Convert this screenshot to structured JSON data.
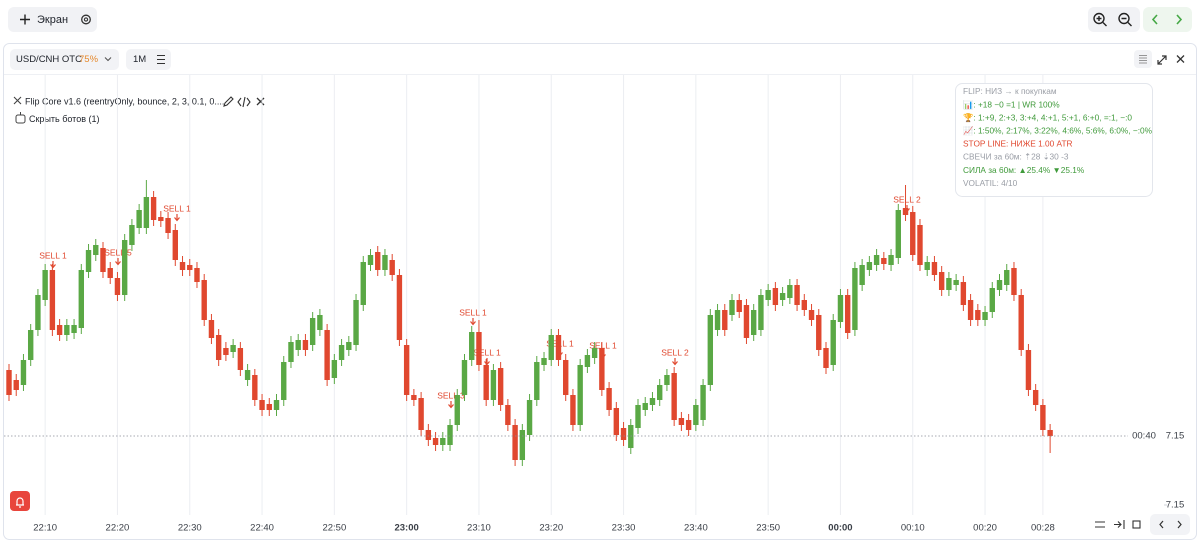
{
  "toolbar": {
    "screen_button": "Экран"
  },
  "panel": {
    "symbol": "USD/CNH OTC",
    "payout": "75%",
    "timeframe": "1M"
  },
  "bot": {
    "name": "Flip Core v1.6 (reentryOnly, bounce, 2, 3, 0.1, 0....",
    "hide": "Скрыть ботов (1)"
  },
  "info_box": {
    "lines": [
      {
        "text": "FLIP: НИЗ → к покупкам",
        "color": "#9a9ea6"
      },
      {
        "text": "📊: +18 −0 =1 | WR 100%",
        "color": "#3f9a3a"
      },
      {
        "text": "🏆: 1:+9, 2:+3, 3:+4, 4:+1, 5:+1, 6:+0, =:1, −:0",
        "color": "#3f9a3a"
      },
      {
        "text": "📈: 1:50%, 2:17%, 3:22%, 4:6%, 5:6%, 6:0%, −:0%",
        "color": "#3f9a3a"
      },
      {
        "text": "STOP LINE: НИЖЕ 1.00 ATR",
        "color": "#e0482f"
      },
      {
        "text": "СВЕЧИ за 60м: ⇡28 ⇣30 -3",
        "color": "#9a9ea6"
      },
      {
        "text": "СИЛА за 60м: ▲25.4% ▼25.1%",
        "color": "#3f9a3a"
      },
      {
        "text": "VOLATIL: 4/10",
        "color": "#9a9ea6"
      }
    ]
  },
  "chart_data": {
    "type": "candlestick",
    "up_color": "#5aa845",
    "down_color": "#e0482f",
    "ylim": [
      7.1499,
      7.1543
    ],
    "yticks": [
      7.15
    ],
    "current_price": {
      "value": 7.15069,
      "label": "7.15"
    },
    "timer": "00:40",
    "annotations": [
      "SELL 1",
      "SELL 5",
      "SELL 1",
      "SELL 3",
      "SELL 1",
      "SELL 1",
      "SELL 1",
      "SELL 1",
      "SELL 2",
      "SELL 2"
    ],
    "categories": [
      null,
      null,
      null,
      null,
      null,
      "22:10",
      null,
      null,
      null,
      null,
      null,
      null,
      null,
      null,
      null,
      "22:20",
      null,
      null,
      null,
      null,
      null,
      null,
      null,
      null,
      null,
      "22:30",
      null,
      null,
      null,
      null,
      null,
      null,
      null,
      null,
      null,
      "22:40",
      null,
      null,
      null,
      null,
      null,
      null,
      null,
      null,
      null,
      "22:50",
      null,
      null,
      null,
      null,
      null,
      null,
      null,
      null,
      null,
      "23:00",
      null,
      null,
      null,
      null,
      null,
      null,
      null,
      null,
      null,
      "23:10",
      null,
      null,
      null,
      null,
      null,
      null,
      null,
      null,
      null,
      "23:20",
      null,
      null,
      null,
      null,
      null,
      null,
      null,
      null,
      null,
      "23:30",
      null,
      null,
      null,
      null,
      null,
      null,
      null,
      null,
      null,
      "23:40",
      null,
      null,
      null,
      null,
      null,
      null,
      null,
      null,
      null,
      "23:50",
      null,
      null,
      null,
      null,
      null,
      null,
      null,
      null,
      null,
      "00:00",
      null,
      null,
      null,
      null,
      null,
      null,
      null,
      null,
      null,
      "00:10",
      null,
      null,
      null,
      null,
      null,
      null,
      null,
      null,
      null,
      "00:20",
      null,
      null,
      null,
      null,
      null,
      null,
      null,
      "00:28",
      null
    ],
    "open": [
      7.15135,
      7.15125,
      7.1512,
      7.15145,
      7.15175,
      7.15205,
      7.15235,
      7.1518,
      7.1517,
      7.15172,
      7.15177,
      7.15233,
      7.1525,
      7.15257,
      7.15237,
      7.15227,
      7.1521,
      7.1526,
      7.15277,
      7.15277,
      7.15308,
      7.15288,
      7.15287,
      7.15275,
      7.15243,
      7.1524,
      7.15237,
      7.15225,
      7.15185,
      7.1517,
      7.15157,
      7.15153,
      7.15157,
      7.15125,
      7.1513,
      7.15105,
      7.15101,
      7.15095,
      7.15105,
      7.15143,
      7.15155,
      7.15165,
      7.1516,
      7.15175,
      7.15175,
      7.15127,
      7.15145,
      7.15155,
      7.1516,
      7.152,
      7.1524,
      7.15253,
      7.15235,
      7.15245,
      7.1523,
      7.1516,
      7.1511,
      7.15107,
      7.15075,
      7.15067,
      7.1506,
      7.1506,
      7.1508,
      7.1511,
      7.15145,
      7.15173,
      7.1514,
      7.15105,
      7.15137,
      7.151,
      7.1508,
      7.15045,
      7.1507,
      7.15105,
      7.1514,
      7.15145,
      7.1517,
      7.15145,
      7.1511,
      7.1508,
      7.15138,
      7.15147,
      7.15157,
      7.15117,
      7.15097,
      7.15077,
      7.15057,
      7.15077,
      7.15095,
      7.151,
      7.15105,
      7.1512,
      7.15132,
      7.15087,
      7.15085,
      7.1508,
      7.15085,
      7.1512,
      7.15175,
      7.15195,
      7.1519,
      7.15205,
      7.152,
      7.1517,
      7.15175,
      7.15205,
      7.15217,
      7.15205,
      7.15207,
      7.1522,
      7.15205,
      7.15195,
      7.1519,
      7.15157,
      7.1514,
      7.15183,
      7.1521,
      7.15175,
      7.1522,
      7.15235,
      7.1524,
      7.15247,
      7.1524,
      7.15247,
      7.15297,
      7.15293,
      7.1528,
      7.15235,
      7.15243,
      7.15233,
      7.15215,
      7.1522,
      7.15223,
      7.15205,
      7.15195,
      7.15185,
      7.15193,
      7.15215,
      7.1522,
      7.15237,
      7.1521,
      7.15155,
      7.15115,
      7.151,
      7.15075
    ],
    "high": [
      7.15141,
      7.15131,
      7.15151,
      7.15181,
      7.15216,
      7.15241,
      7.15241,
      7.15186,
      7.15186,
      7.15186,
      7.15241,
      7.15261,
      7.15266,
      7.15263,
      7.15243,
      7.15233,
      7.15271,
      7.15286,
      7.15301,
      7.15325,
      7.15314,
      7.15294,
      7.15293,
      7.15281,
      7.15249,
      7.15246,
      7.15243,
      7.15231,
      7.15191,
      7.15176,
      7.15163,
      7.15166,
      7.15163,
      7.15141,
      7.15136,
      7.15111,
      7.15107,
      7.15111,
      7.15149,
      7.15169,
      7.15171,
      7.15171,
      7.15193,
      7.15196,
      7.15181,
      7.15151,
      7.15166,
      7.15169,
      7.15211,
      7.15249,
      7.15256,
      7.15259,
      7.15256,
      7.15251,
      7.15236,
      7.15166,
      7.15116,
      7.15113,
      7.15081,
      7.15073,
      7.15073,
      7.15086,
      7.15116,
      7.15151,
      7.15179,
      7.15185,
      7.15146,
      7.15141,
      7.15143,
      7.15106,
      7.15086,
      7.15081,
      7.15111,
      7.15149,
      7.15153,
      7.15176,
      7.15176,
      7.15151,
      7.15116,
      7.15146,
      7.15156,
      7.15163,
      7.15163,
      7.15123,
      7.15103,
      7.15083,
      7.15086,
      7.15106,
      7.15108,
      7.15113,
      7.15126,
      7.15136,
      7.15138,
      7.15093,
      7.15091,
      7.15106,
      7.15126,
      7.15196,
      7.15201,
      7.15201,
      7.15211,
      7.15211,
      7.15206,
      7.15201,
      7.15216,
      7.15221,
      7.15223,
      7.15218,
      7.15226,
      7.15226,
      7.15211,
      7.15201,
      7.15196,
      7.15163,
      7.15191,
      7.15216,
      7.15216,
      7.15243,
      7.15246,
      7.15249,
      7.15256,
      7.15253,
      7.15256,
      7.15301,
      7.1532,
      7.15299,
      7.15286,
      7.15249,
      7.15249,
      7.15239,
      7.15233,
      7.15231,
      7.15229,
      7.15211,
      7.15201,
      7.15199,
      7.15223,
      7.15231,
      7.15241,
      7.15243,
      7.15216,
      7.15161,
      7.15121,
      7.15106,
      7.15081
    ],
    "low": [
      7.15104,
      7.15109,
      7.15114,
      7.15139,
      7.15169,
      7.15199,
      7.15169,
      7.15164,
      7.15164,
      7.15166,
      7.15171,
      7.15227,
      7.15244,
      7.15227,
      7.15221,
      7.15204,
      7.15204,
      7.15254,
      7.15271,
      7.15271,
      7.15279,
      7.15278,
      7.15266,
      7.15239,
      7.15229,
      7.15229,
      7.15217,
      7.15179,
      7.15161,
      7.15139,
      7.15144,
      7.15147,
      7.15129,
      7.15119,
      7.15099,
      7.15089,
      7.15089,
      7.15089,
      7.15099,
      7.15137,
      7.15149,
      7.15149,
      7.15154,
      7.15169,
      7.15119,
      7.15121,
      7.15139,
      7.15149,
      7.15154,
      7.15194,
      7.15234,
      7.15229,
      7.15229,
      7.15224,
      7.15159,
      7.15104,
      7.15099,
      7.15069,
      7.15059,
      7.15054,
      7.15054,
      7.15054,
      7.15074,
      7.15104,
      7.15139,
      7.15134,
      7.15099,
      7.15099,
      7.15094,
      7.15074,
      7.15039,
      7.15039,
      7.15064,
      7.15099,
      7.15134,
      7.15139,
      7.15139,
      7.15104,
      7.15074,
      7.15074,
      7.15132,
      7.15141,
      7.15109,
      7.15089,
      7.15064,
      7.15059,
      7.15051,
      7.15071,
      7.15089,
      7.15094,
      7.15099,
      7.15114,
      7.15079,
      7.15074,
      7.15069,
      7.15074,
      7.15079,
      7.15114,
      7.15169,
      7.15169,
      7.15184,
      7.15187,
      7.15161,
      7.15164,
      7.15169,
      7.15199,
      7.15194,
      7.15199,
      7.15201,
      7.15194,
      7.15189,
      7.15179,
      7.15149,
      7.15131,
      7.15134,
      7.15177,
      7.15166,
      7.15169,
      7.15214,
      7.15229,
      7.15234,
      7.15235,
      7.15234,
      7.15241,
      7.15284,
      7.15244,
      7.15234,
      7.15229,
      7.15224,
      7.15209,
      7.15209,
      7.15214,
      7.15194,
      7.15179,
      7.15179,
      7.15179,
      7.15187,
      7.15209,
      7.15214,
      7.15204,
      7.15149,
      7.15109,
      7.15094,
      7.15069,
      7.15052
    ],
    "close": [
      7.1511,
      7.15115,
      7.15145,
      7.15175,
      7.1521,
      7.15235,
      7.15175,
      7.1517,
      7.1518,
      7.1518,
      7.15235,
      7.15255,
      7.1526,
      7.15233,
      7.15227,
      7.1521,
      7.15265,
      7.1528,
      7.15295,
      7.15308,
      7.15285,
      7.15284,
      7.15272,
      7.15245,
      7.15235,
      7.15235,
      7.15223,
      7.15185,
      7.15167,
      7.15145,
      7.1515,
      7.1516,
      7.15135,
      7.15135,
      7.15105,
      7.15095,
      7.15095,
      7.15105,
      7.15143,
      7.15163,
      7.15165,
      7.15155,
      7.15187,
      7.1519,
      7.15125,
      7.15145,
      7.1516,
      7.15163,
      7.15205,
      7.15243,
      7.1525,
      7.15235,
      7.1525,
      7.1523,
      7.15165,
      7.1511,
      7.15105,
      7.15075,
      7.15065,
      7.1506,
      7.15067,
      7.1508,
      7.1511,
      7.15145,
      7.15173,
      7.1514,
      7.15105,
      7.15135,
      7.151,
      7.1508,
      7.15045,
      7.15075,
      7.15105,
      7.15143,
      7.15147,
      7.1517,
      7.15145,
      7.1511,
      7.1508,
      7.1514,
      7.1515,
      7.15157,
      7.15115,
      7.15095,
      7.1507,
      7.15065,
      7.1508,
      7.151,
      7.15102,
      7.15107,
      7.1512,
      7.1513,
      7.15085,
      7.1508,
      7.15075,
      7.151,
      7.1512,
      7.1519,
      7.15195,
      7.15175,
      7.15205,
      7.15193,
      7.15167,
      7.15195,
      7.1521,
      7.15215,
      7.152,
      7.15212,
      7.1522,
      7.152,
      7.15195,
      7.15185,
      7.15155,
      7.15137,
      7.15185,
      7.1521,
      7.15172,
      7.15237,
      7.1524,
      7.15243,
      7.1525,
      7.15241,
      7.1525,
      7.15295,
      7.1529,
      7.1525,
      7.1524,
      7.15243,
      7.1523,
      7.15215,
      7.15227,
      7.15225,
      7.152,
      7.15185,
      7.15185,
      7.15193,
      7.15217,
      7.15225,
      7.15235,
      7.1521,
      7.15155,
      7.15115,
      7.151,
      7.15075,
      7.15069
    ]
  }
}
